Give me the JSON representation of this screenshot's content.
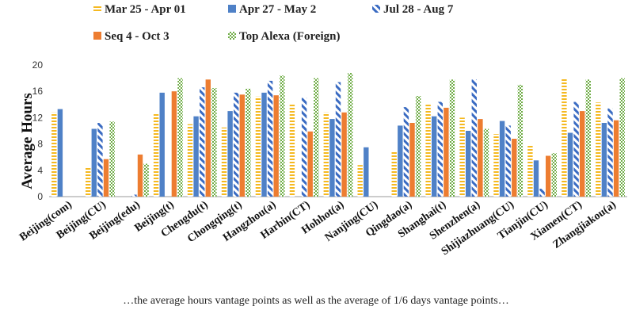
{
  "chart_data": {
    "type": "bar",
    "title": "",
    "xlabel": "",
    "ylabel": "Average Hours",
    "ylim": [
      0,
      20
    ],
    "yticks": [
      "0",
      "4",
      "8",
      "12",
      "16",
      "20"
    ],
    "grid": false,
    "legend_position": "top",
    "categories": [
      "Beijing(com)",
      "Beijing(CU)",
      "Beijing(edu)",
      "Beijing(t)",
      "Chengdu(t)",
      "Chongqing(t)",
      "Hangzhou(a)",
      "Harbin(CT)",
      "Hohhot(a)",
      "Nanjing(CU)",
      "Qingdao(a)",
      "Shanghai(t)",
      "Shenzhen(a)",
      "Shijiazhuang(CU)",
      "Tianjin(CU)",
      "Xiamen(CT)",
      "Zhangjiakou(a)"
    ],
    "series": [
      {
        "name": "Mar 25 - Apr 01",
        "color": "#F5B921",
        "pattern": "horizontal-dash",
        "values": [
          12.8,
          4.5,
          0.0,
          12.6,
          11.0,
          10.5,
          15.2,
          14.2,
          12.8,
          4.8,
          6.8,
          14.2,
          12.0,
          9.5,
          7.8,
          18.0,
          14.3
        ]
      },
      {
        "name": "Apr 27 - May 2",
        "color": "#4F81C7",
        "pattern": "solid",
        "values": [
          13.3,
          10.3,
          0.0,
          15.8,
          12.2,
          13.0,
          15.8,
          0.0,
          11.8,
          7.5,
          10.8,
          12.2,
          10.0,
          11.5,
          5.5,
          9.7,
          11.2
        ]
      },
      {
        "name": "Jul 28 - Aug 7",
        "color": "#3A6BC2",
        "pattern": "diagonal-stripe",
        "values": [
          0.0,
          11.2,
          0.3,
          0.0,
          16.6,
          15.8,
          17.6,
          15.0,
          17.4,
          0.0,
          13.6,
          14.4,
          17.8,
          10.8,
          1.2,
          14.4,
          13.4
        ]
      },
      {
        "name": "Seq 4 - Oct 3",
        "color": "#ED7D31",
        "pattern": "solid",
        "values": [
          0.0,
          5.7,
          6.4,
          16.0,
          17.8,
          15.5,
          15.4,
          9.9,
          12.8,
          0.0,
          11.2,
          13.5,
          11.8,
          8.8,
          6.2,
          13.0,
          11.6
        ]
      },
      {
        "name": "Top Alexa (Foreign)",
        "color": "#70AD47",
        "pattern": "dotted-check",
        "values": [
          0.0,
          11.4,
          5.0,
          18.0,
          16.5,
          16.4,
          18.4,
          18.0,
          18.8,
          0.0,
          15.3,
          17.8,
          10.3,
          17.0,
          6.6,
          17.8,
          18.0
        ]
      }
    ]
  },
  "caption": "…the average hours vantage points as well as the average of 1/6 days vantage points…"
}
